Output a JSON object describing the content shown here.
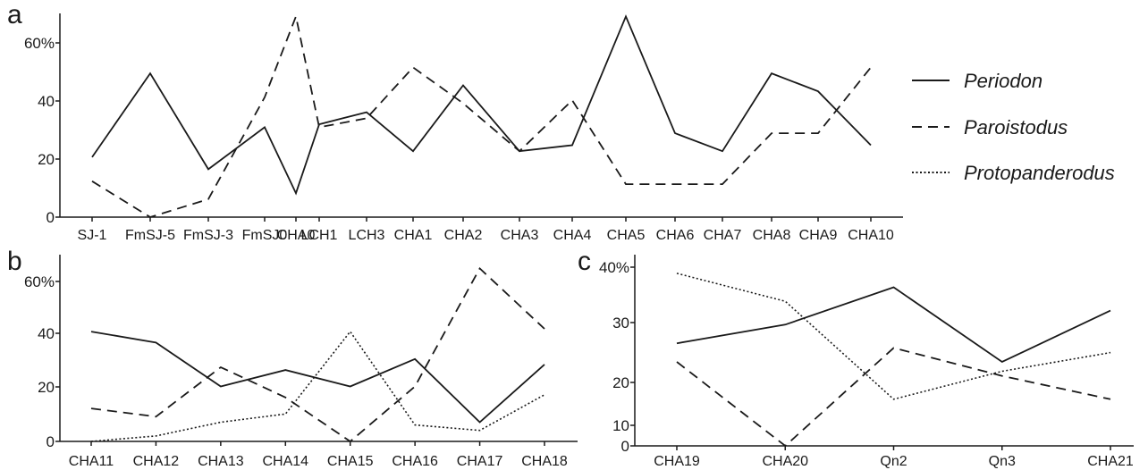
{
  "legend": {
    "placement": "right of panel a",
    "entries": [
      {
        "name": "Periodon",
        "style": "solid"
      },
      {
        "name": "Paroistodus",
        "style": "dashed"
      },
      {
        "name": "Protopanderodus",
        "style": "dotted"
      }
    ]
  },
  "chart_data": [
    {
      "type": "line",
      "panel_label": "a",
      "categories": [
        "SJ-1",
        "FmSJ-5",
        "FmSJ-3",
        "FmSJ0",
        "CHA0",
        "LCH1",
        "LCH3",
        "CHA1",
        "CHA2",
        "CHA3",
        "CHA4",
        "CHA5",
        "CHA6",
        "CHA7",
        "CHA8",
        "CHA9",
        "CHA10"
      ],
      "yticks": [
        "0",
        "20",
        "40",
        "60%"
      ],
      "ylim": [
        0,
        68
      ],
      "grid": false,
      "series": [
        {
          "name": "Periodon",
          "style": "solid",
          "values": [
            20,
            48,
            16,
            30,
            8,
            31,
            35,
            22,
            44,
            22,
            24,
            67,
            28,
            22,
            48,
            42,
            24
          ]
        },
        {
          "name": "Paroistodus",
          "style": "dashed",
          "values": [
            12,
            0,
            6,
            40,
            67,
            30,
            33,
            50,
            38,
            22,
            39,
            11,
            11,
            11,
            28,
            28,
            50
          ]
        }
      ]
    },
    {
      "type": "line",
      "panel_label": "b",
      "categories": [
        "CHA11",
        "CHA12",
        "CHA13",
        "CHA14",
        "CHA15",
        "CHA16",
        "CHA17",
        "CHA18"
      ],
      "yticks": [
        "0",
        "20",
        "40",
        "60%"
      ],
      "ylim": [
        0,
        68
      ],
      "grid": false,
      "series": [
        {
          "name": "Periodon",
          "style": "solid",
          "values": [
            40,
            36,
            20,
            26,
            20,
            30,
            7,
            28
          ]
        },
        {
          "name": "Paroistodus",
          "style": "dashed",
          "values": [
            12,
            9,
            27,
            16,
            0,
            20,
            63,
            41
          ]
        },
        {
          "name": "Protopanderodus",
          "style": "dotted",
          "values": [
            0,
            2,
            7,
            10,
            40,
            6,
            4,
            17
          ]
        }
      ]
    },
    {
      "type": "line",
      "panel_label": "c",
      "categories": [
        "CHA19",
        "CHA20",
        "Qn2",
        "Qn3",
        "CHA21"
      ],
      "yticks": [
        "0",
        "10",
        "20",
        "30",
        "40%"
      ],
      "ylim": [
        0,
        41
      ],
      "grid": false,
      "series": [
        {
          "name": "Periodon",
          "style": "solid",
          "values": [
            22,
            26,
            34,
            18,
            29
          ]
        },
        {
          "name": "Paroistodus",
          "style": "dashed",
          "values": [
            18,
            0,
            21,
            15,
            10
          ]
        },
        {
          "name": "Protopanderodus",
          "style": "dotted",
          "values": [
            37,
            31,
            10,
            16,
            20
          ]
        }
      ]
    }
  ]
}
